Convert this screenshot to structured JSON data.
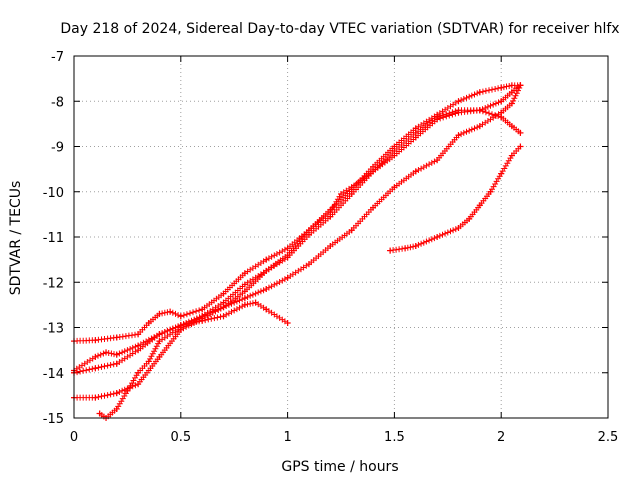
{
  "chart_data": {
    "type": "scatter",
    "title": "Day 218 of 2024, Sidereal Day-to-day VTEC variation (SDTVAR) for receiver hlfx",
    "xlabel": "GPS time / hours",
    "ylabel": "SDTVAR / TECUs",
    "xlim": [
      0,
      2.5
    ],
    "ylim": [
      -15,
      -7
    ],
    "xticks": [
      0,
      0.5,
      1,
      1.5,
      2,
      2.5
    ],
    "xtick_labels": [
      "0",
      "0.5",
      "1",
      "1.5",
      "2",
      "2.5"
    ],
    "yticks": [
      -15,
      -14,
      -13,
      -12,
      -11,
      -10,
      -9,
      -8,
      -7
    ],
    "ytick_labels": [
      "-15",
      "-14",
      "-13",
      "-12",
      "-11",
      "-10",
      "-9",
      "-8",
      "-7"
    ],
    "grid": true,
    "marker": "+",
    "color": "#ff0000",
    "series": [
      {
        "x": [
          0.0,
          0.1,
          0.2,
          0.3,
          0.35,
          0.4,
          0.45,
          0.5,
          0.6,
          0.7,
          0.8,
          0.9,
          1.0,
          1.1,
          1.2,
          1.25,
          1.3,
          1.4,
          1.5,
          1.6,
          1.7,
          1.8,
          1.9,
          2.0,
          2.05,
          2.09
        ],
        "y": [
          -13.3,
          -13.28,
          -13.22,
          -13.15,
          -12.9,
          -12.7,
          -12.65,
          -12.75,
          -12.6,
          -12.25,
          -11.8,
          -11.5,
          -11.25,
          -10.85,
          -10.45,
          -10.05,
          -9.9,
          -9.55,
          -9.1,
          -8.7,
          -8.35,
          -8.2,
          -8.2,
          -8.35,
          -8.55,
          -8.7
        ]
      },
      {
        "x": [
          0.0,
          0.1,
          0.2,
          0.3,
          0.4,
          0.5,
          0.6,
          0.7,
          0.8,
          0.9,
          1.0,
          1.1,
          1.2,
          1.3,
          1.4,
          1.5,
          1.6,
          1.7,
          1.8,
          1.9,
          2.0,
          2.05,
          2.09
        ],
        "y": [
          -14.55,
          -14.55,
          -14.45,
          -14.25,
          -13.65,
          -13.05,
          -12.8,
          -12.55,
          -12.2,
          -11.75,
          -11.45,
          -10.95,
          -10.55,
          -10.05,
          -9.55,
          -9.2,
          -8.8,
          -8.4,
          -8.25,
          -8.2,
          -8.0,
          -7.8,
          -7.65
        ]
      },
      {
        "x": [
          0.0,
          0.1,
          0.15,
          0.2,
          0.3,
          0.4,
          0.5,
          0.6,
          0.7,
          0.8,
          0.9,
          1.0,
          1.1,
          1.2,
          1.3,
          1.4,
          1.5,
          1.6,
          1.7,
          1.8,
          1.9,
          2.0,
          2.05,
          2.09
        ],
        "y": [
          -13.95,
          -13.65,
          -13.55,
          -13.6,
          -13.4,
          -13.15,
          -12.95,
          -12.75,
          -12.45,
          -12.05,
          -11.75,
          -11.4,
          -10.85,
          -10.4,
          -9.95,
          -9.45,
          -9.0,
          -8.6,
          -8.3,
          -8.0,
          -7.8,
          -7.7,
          -7.65,
          -7.65
        ]
      },
      {
        "x": [
          0.0,
          0.1,
          0.2,
          0.3,
          0.4,
          0.5,
          0.6,
          0.7,
          0.8,
          0.85,
          0.9,
          1.0
        ],
        "y": [
          -14.0,
          -13.9,
          -13.8,
          -13.5,
          -13.15,
          -12.95,
          -12.85,
          -12.75,
          -12.5,
          -12.45,
          -12.6,
          -12.9
        ]
      },
      {
        "x": [
          0.12,
          0.15,
          0.2,
          0.25,
          0.3,
          0.35,
          0.4,
          0.5,
          0.6,
          0.7,
          0.8,
          0.9,
          1.0,
          1.1,
          1.2,
          1.3,
          1.4,
          1.5,
          1.6,
          1.7,
          1.8,
          1.9,
          2.0,
          2.05,
          2.09
        ],
        "y": [
          -14.9,
          -15.0,
          -14.8,
          -14.4,
          -14.0,
          -13.75,
          -13.3,
          -13.0,
          -12.75,
          -12.55,
          -12.35,
          -12.15,
          -11.9,
          -11.6,
          -11.2,
          -10.85,
          -10.35,
          -9.9,
          -9.55,
          -9.3,
          -8.75,
          -8.55,
          -8.25,
          -8.05,
          -7.65
        ]
      },
      {
        "x": [
          1.48,
          1.55,
          1.6,
          1.7,
          1.8,
          1.85,
          1.9,
          1.95,
          2.0,
          2.05,
          2.09
        ],
        "y": [
          -11.3,
          -11.25,
          -11.2,
          -11.0,
          -10.8,
          -10.6,
          -10.3,
          -10.0,
          -9.6,
          -9.2,
          -9.0
        ]
      }
    ]
  }
}
